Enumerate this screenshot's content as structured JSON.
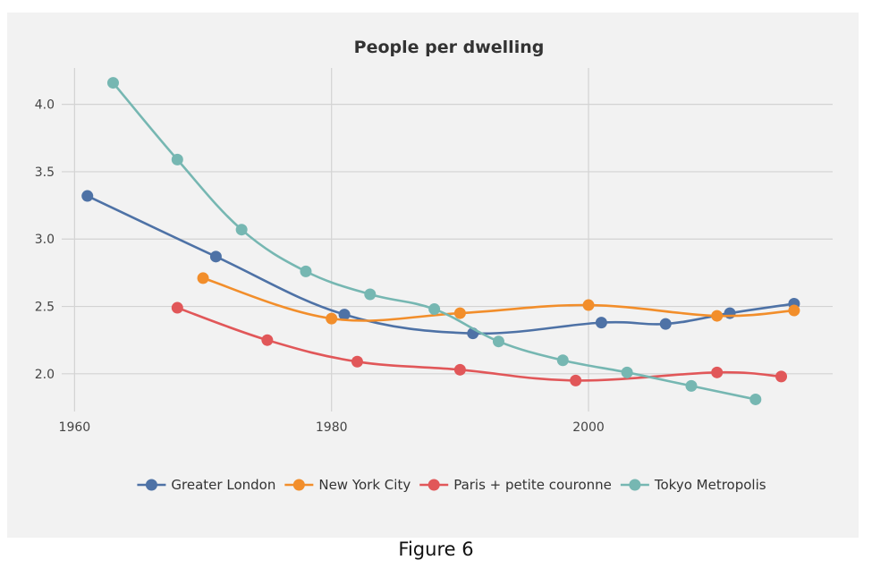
{
  "caption": "Figure 6",
  "chart_data": {
    "type": "line",
    "title": "People per dwelling",
    "xlabel": "",
    "ylabel": "",
    "xlim": [
      1959,
      2019
    ],
    "ylim": [
      1.72,
      4.27
    ],
    "x_ticks": [
      1960,
      1980,
      2000
    ],
    "y_ticks": [
      2.0,
      2.5,
      3.0,
      3.5,
      4.0
    ],
    "x_tick_labels": [
      "1960",
      "1980",
      "2000"
    ],
    "y_tick_labels": [
      "2.0",
      "2.5",
      "3.0",
      "3.5",
      "4.0"
    ],
    "grid": true,
    "legend_position": "bottom",
    "series": [
      {
        "name": "Greater London",
        "color": "#4e72a6",
        "points": [
          [
            1961,
            3.32
          ],
          [
            1971,
            2.87
          ],
          [
            1981,
            2.44
          ],
          [
            1991,
            2.3
          ],
          [
            2001,
            2.38
          ],
          [
            2006,
            2.37
          ],
          [
            2011,
            2.45
          ],
          [
            2016,
            2.52
          ]
        ]
      },
      {
        "name": "New York City",
        "color": "#f28e2b",
        "points": [
          [
            1970,
            2.71
          ],
          [
            1980,
            2.41
          ],
          [
            1990,
            2.45
          ],
          [
            2000,
            2.51
          ],
          [
            2010,
            2.43
          ],
          [
            2016,
            2.47
          ]
        ]
      },
      {
        "name": "Paris + petite couronne",
        "color": "#e15759",
        "points": [
          [
            1968,
            2.49
          ],
          [
            1975,
            2.25
          ],
          [
            1982,
            2.09
          ],
          [
            1990,
            2.03
          ],
          [
            1999,
            1.95
          ],
          [
            2010,
            2.01
          ],
          [
            2015,
            1.98
          ]
        ]
      },
      {
        "name": "Tokyo Metropolis",
        "color": "#76b7b2",
        "points": [
          [
            1963,
            4.16
          ],
          [
            1968,
            3.59
          ],
          [
            1973,
            3.07
          ],
          [
            1978,
            2.76
          ],
          [
            1983,
            2.59
          ],
          [
            1988,
            2.48
          ],
          [
            1993,
            2.24
          ],
          [
            1998,
            2.1
          ],
          [
            2003,
            2.01
          ],
          [
            2008,
            1.91
          ],
          [
            2013,
            1.81
          ]
        ]
      }
    ]
  }
}
